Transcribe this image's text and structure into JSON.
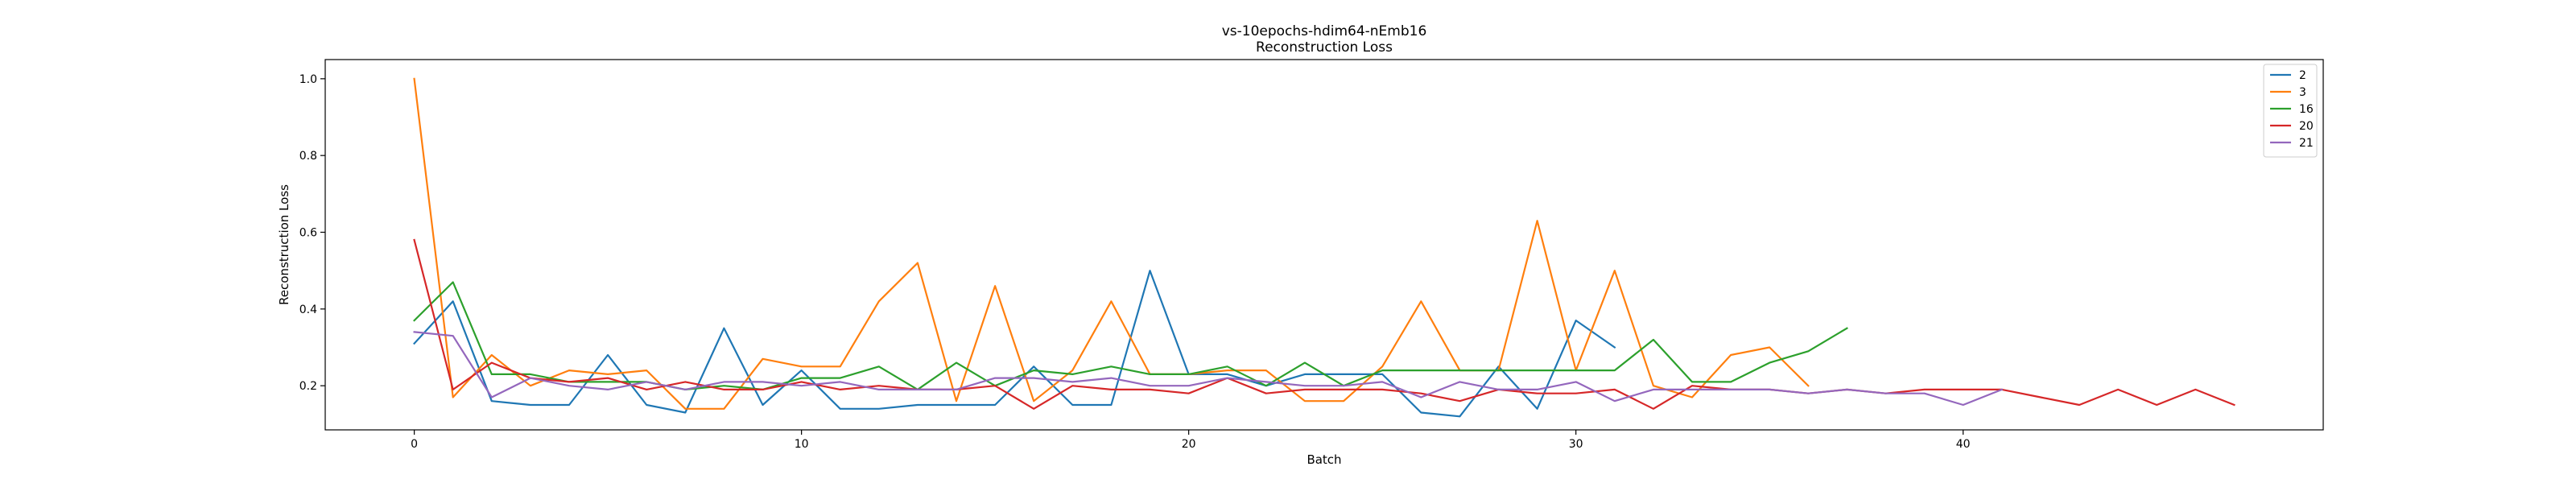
{
  "chart_data": {
    "type": "line",
    "title": "vs-10epochs-hdim64-nEmb16",
    "subtitle": "Reconstruction Loss",
    "xlabel": "Batch",
    "ylabel": "Reconstruction Loss",
    "xlim": [
      -2.3,
      49.3
    ],
    "ylim": [
      0.085,
      1.05
    ],
    "xticks": [
      0,
      10,
      20,
      30,
      40
    ],
    "yticks": [
      0.2,
      0.4,
      0.6,
      0.8,
      1.0
    ],
    "ytick_labels": [
      "0.2",
      "0.4",
      "0.6",
      "0.8",
      "1.0"
    ],
    "grid": false,
    "legend_position": "top-right",
    "series": [
      {
        "name": "2",
        "color": "#1f77b4",
        "values": [
          0.31,
          0.42,
          0.16,
          0.15,
          0.15,
          0.28,
          0.15,
          0.13,
          0.35,
          0.15,
          0.24,
          0.14,
          0.14,
          0.15,
          0.15,
          0.15,
          0.25,
          0.15,
          0.15,
          0.5,
          0.23,
          0.23,
          0.2,
          0.23,
          0.23,
          0.23,
          0.13,
          0.12,
          0.25,
          0.14,
          0.37,
          0.3
        ]
      },
      {
        "name": "3",
        "color": "#ff7f0e",
        "values": [
          1.0,
          0.17,
          0.28,
          0.2,
          0.24,
          0.23,
          0.24,
          0.14,
          0.14,
          0.27,
          0.25,
          0.25,
          0.42,
          0.52,
          0.16,
          0.46,
          0.16,
          0.24,
          0.42,
          0.23,
          0.23,
          0.24,
          0.24,
          0.16,
          0.16,
          0.25,
          0.42,
          0.24,
          0.24,
          0.63,
          0.24,
          0.5,
          0.2,
          0.17,
          0.28,
          0.3,
          0.2
        ]
      },
      {
        "name": "16",
        "color": "#2ca02c",
        "values": [
          0.37,
          0.47,
          0.23,
          0.23,
          0.21,
          0.21,
          0.21,
          0.19,
          0.2,
          0.19,
          0.22,
          0.22,
          0.25,
          0.19,
          0.26,
          0.2,
          0.24,
          0.23,
          0.25,
          0.23,
          0.23,
          0.25,
          0.2,
          0.26,
          0.2,
          0.24,
          0.24,
          0.24,
          0.24,
          0.24,
          0.24,
          0.24,
          0.32,
          0.21,
          0.21,
          0.26,
          0.29,
          0.35
        ]
      },
      {
        "name": "20",
        "color": "#d62728",
        "values": [
          0.58,
          0.19,
          0.26,
          0.22,
          0.21,
          0.22,
          0.19,
          0.21,
          0.19,
          0.19,
          0.21,
          0.19,
          0.2,
          0.19,
          0.19,
          0.2,
          0.14,
          0.2,
          0.19,
          0.19,
          0.18,
          0.22,
          0.18,
          0.19,
          0.19,
          0.19,
          0.18,
          0.16,
          0.19,
          0.18,
          0.18,
          0.19,
          0.14,
          0.2,
          0.19,
          0.19,
          0.18,
          0.19,
          0.18,
          0.19,
          0.19,
          0.19,
          0.17,
          0.15,
          0.19,
          0.15,
          0.19,
          0.15
        ]
      },
      {
        "name": "21",
        "color": "#9467bd",
        "values": [
          0.34,
          0.33,
          0.17,
          0.22,
          0.2,
          0.19,
          0.21,
          0.19,
          0.21,
          0.21,
          0.2,
          0.21,
          0.19,
          0.19,
          0.19,
          0.22,
          0.22,
          0.21,
          0.22,
          0.2,
          0.2,
          0.22,
          0.21,
          0.2,
          0.2,
          0.21,
          0.17,
          0.21,
          0.19,
          0.19,
          0.21,
          0.16,
          0.19,
          0.19,
          0.19,
          0.19,
          0.18,
          0.19,
          0.18,
          0.18,
          0.15,
          0.19
        ]
      }
    ]
  }
}
